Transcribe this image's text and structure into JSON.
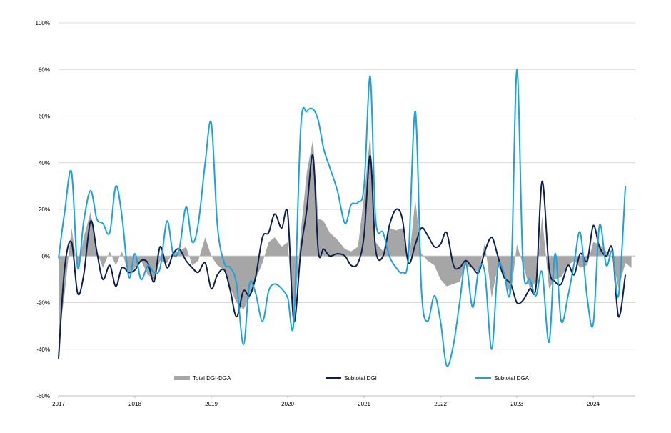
{
  "chart_data": {
    "type": "line",
    "x_unit": "year",
    "xlim": [
      2017,
      2024.55
    ],
    "ylim": [
      -60,
      100
    ],
    "y_ticks": [
      -60,
      -40,
      -20,
      0,
      20,
      40,
      60,
      80,
      100
    ],
    "y_tick_format": "{v}%",
    "x_ticks": [
      "2017",
      "2018",
      "2019",
      "2020",
      "2021",
      "2022",
      "2023",
      "2024"
    ],
    "grid": true,
    "legend_position": "bottom",
    "series": [
      {
        "name": "Total DGI-DGA",
        "type": "area",
        "color": "#a6a6a6",
        "points": [
          [
            2017,
            -36
          ],
          [
            2017.08,
            -16
          ],
          [
            2017.17,
            12
          ],
          [
            2017.25,
            -6
          ],
          [
            2017.33,
            8
          ],
          [
            2017.42,
            19
          ],
          [
            2017.5,
            2
          ],
          [
            2017.58,
            -5
          ],
          [
            2017.67,
            2
          ],
          [
            2017.75,
            -4
          ],
          [
            2017.83,
            2
          ],
          [
            2017.92,
            -8
          ],
          [
            2018,
            -5
          ],
          [
            2018.08,
            -2
          ],
          [
            2018.17,
            -8
          ],
          [
            2018.25,
            -10
          ],
          [
            2018.33,
            -2
          ],
          [
            2018.42,
            -3
          ],
          [
            2018.5,
            2
          ],
          [
            2018.58,
            2
          ],
          [
            2018.67,
            4
          ],
          [
            2018.75,
            -4
          ],
          [
            2018.83,
            -2
          ],
          [
            2018.92,
            8
          ],
          [
            2019,
            0
          ],
          [
            2019.08,
            -4
          ],
          [
            2019.17,
            -6
          ],
          [
            2019.25,
            -14
          ],
          [
            2019.33,
            -20
          ],
          [
            2019.42,
            -23
          ],
          [
            2019.5,
            -18
          ],
          [
            2019.58,
            -10
          ],
          [
            2019.67,
            -3
          ],
          [
            2019.75,
            6
          ],
          [
            2019.83,
            8
          ],
          [
            2019.92,
            4
          ],
          [
            2020,
            6
          ],
          [
            2020.08,
            -30
          ],
          [
            2020.17,
            10
          ],
          [
            2020.25,
            36
          ],
          [
            2020.33,
            50
          ],
          [
            2020.4,
            16
          ],
          [
            2020.47,
            15
          ],
          [
            2020.55,
            10
          ],
          [
            2020.65,
            7
          ],
          [
            2020.75,
            3
          ],
          [
            2020.83,
            2
          ],
          [
            2020.92,
            4
          ],
          [
            2021,
            26
          ],
          [
            2021.08,
            52
          ],
          [
            2021.15,
            6
          ],
          [
            2021.25,
            2
          ],
          [
            2021.33,
            12
          ],
          [
            2021.42,
            11
          ],
          [
            2021.5,
            12
          ],
          [
            2021.58,
            -4
          ],
          [
            2021.67,
            24
          ],
          [
            2021.75,
            1
          ],
          [
            2021.83,
            -2
          ],
          [
            2021.92,
            -4
          ],
          [
            2022,
            -10
          ],
          [
            2022.08,
            -13
          ],
          [
            2022.17,
            -12
          ],
          [
            2022.25,
            -11
          ],
          [
            2022.33,
            -4
          ],
          [
            2022.42,
            -5
          ],
          [
            2022.5,
            -7
          ],
          [
            2022.58,
            6
          ],
          [
            2022.67,
            -18
          ],
          [
            2022.75,
            -4
          ],
          [
            2022.83,
            -9
          ],
          [
            2022.92,
            -17
          ],
          [
            2023,
            5
          ],
          [
            2023.08,
            -4
          ],
          [
            2023.17,
            -14
          ],
          [
            2023.25,
            -11
          ],
          [
            2023.33,
            17
          ],
          [
            2023.42,
            -14
          ],
          [
            2023.5,
            -10
          ],
          [
            2023.58,
            -9
          ],
          [
            2023.67,
            -4
          ],
          [
            2023.75,
            -2
          ],
          [
            2023.83,
            -5
          ],
          [
            2023.92,
            -4
          ],
          [
            2024,
            6
          ],
          [
            2024.08,
            5
          ],
          [
            2024.17,
            2
          ],
          [
            2024.25,
            -1
          ],
          [
            2024.33,
            -14
          ],
          [
            2024.42,
            -3
          ],
          [
            2024.5,
            -5
          ]
        ]
      },
      {
        "name": "Subtotal DGI",
        "type": "line",
        "color": "#0d1f4f",
        "points": [
          [
            2017,
            -44
          ],
          [
            2017.08,
            -5
          ],
          [
            2017.17,
            6
          ],
          [
            2017.25,
            -16
          ],
          [
            2017.33,
            -8
          ],
          [
            2017.42,
            15
          ],
          [
            2017.5,
            2
          ],
          [
            2017.58,
            -10
          ],
          [
            2017.67,
            -4
          ],
          [
            2017.75,
            -13
          ],
          [
            2017.83,
            -5
          ],
          [
            2017.92,
            -7
          ],
          [
            2018,
            -6
          ],
          [
            2018.08,
            -2
          ],
          [
            2018.17,
            -3
          ],
          [
            2018.25,
            -11
          ],
          [
            2018.33,
            4
          ],
          [
            2018.42,
            -5
          ],
          [
            2018.5,
            1
          ],
          [
            2018.58,
            3
          ],
          [
            2018.67,
            -2
          ],
          [
            2018.75,
            -5
          ],
          [
            2018.83,
            -7
          ],
          [
            2018.92,
            -3
          ],
          [
            2019,
            -14
          ],
          [
            2019.08,
            -8
          ],
          [
            2019.17,
            -6
          ],
          [
            2019.25,
            -15
          ],
          [
            2019.33,
            -26
          ],
          [
            2019.42,
            -15
          ],
          [
            2019.5,
            -17
          ],
          [
            2019.58,
            -9
          ],
          [
            2019.67,
            8
          ],
          [
            2019.75,
            10
          ],
          [
            2019.83,
            18
          ],
          [
            2019.92,
            12
          ],
          [
            2020,
            18
          ],
          [
            2020.08,
            -28
          ],
          [
            2020.17,
            2
          ],
          [
            2020.25,
            20
          ],
          [
            2020.33,
            43
          ],
          [
            2020.4,
            2
          ],
          [
            2020.47,
            3
          ],
          [
            2020.55,
            0
          ],
          [
            2020.65,
            1
          ],
          [
            2020.75,
            0
          ],
          [
            2020.83,
            -4
          ],
          [
            2020.92,
            -3
          ],
          [
            2021,
            9
          ],
          [
            2021.08,
            43
          ],
          [
            2021.15,
            3
          ],
          [
            2021.25,
            0
          ],
          [
            2021.33,
            13
          ],
          [
            2021.42,
            20
          ],
          [
            2021.5,
            16
          ],
          [
            2021.58,
            -3
          ],
          [
            2021.67,
            5
          ],
          [
            2021.75,
            12
          ],
          [
            2021.83,
            9
          ],
          [
            2021.92,
            4
          ],
          [
            2022,
            5
          ],
          [
            2022.08,
            10
          ],
          [
            2022.17,
            -4
          ],
          [
            2022.25,
            -5
          ],
          [
            2022.33,
            -2
          ],
          [
            2022.42,
            -5
          ],
          [
            2022.5,
            -7
          ],
          [
            2022.58,
            2
          ],
          [
            2022.67,
            8
          ],
          [
            2022.75,
            0
          ],
          [
            2022.83,
            -9
          ],
          [
            2022.92,
            -12
          ],
          [
            2023,
            -20
          ],
          [
            2023.08,
            -19
          ],
          [
            2023.17,
            -14
          ],
          [
            2023.25,
            -13
          ],
          [
            2023.33,
            32
          ],
          [
            2023.42,
            -5
          ],
          [
            2023.5,
            -11
          ],
          [
            2023.58,
            -12
          ],
          [
            2023.67,
            -4
          ],
          [
            2023.75,
            -8
          ],
          [
            2023.83,
            1
          ],
          [
            2023.92,
            -2
          ],
          [
            2024,
            13
          ],
          [
            2024.08,
            4
          ],
          [
            2024.17,
            0
          ],
          [
            2024.25,
            3
          ],
          [
            2024.33,
            -26
          ],
          [
            2024.42,
            -8
          ]
        ]
      },
      {
        "name": "Subtotal DGA",
        "type": "line",
        "color": "#1ca3dd",
        "points": [
          [
            2017,
            -1
          ],
          [
            2017.08,
            19
          ],
          [
            2017.17,
            36
          ],
          [
            2017.25,
            -5
          ],
          [
            2017.33,
            15
          ],
          [
            2017.42,
            28
          ],
          [
            2017.5,
            16
          ],
          [
            2017.58,
            14
          ],
          [
            2017.67,
            10
          ],
          [
            2017.75,
            30
          ],
          [
            2017.83,
            17
          ],
          [
            2017.92,
            -9
          ],
          [
            2018,
            1
          ],
          [
            2018.08,
            -10
          ],
          [
            2018.17,
            -4
          ],
          [
            2018.25,
            -7
          ],
          [
            2018.33,
            -5
          ],
          [
            2018.42,
            15
          ],
          [
            2018.5,
            1
          ],
          [
            2018.58,
            3
          ],
          [
            2018.67,
            21
          ],
          [
            2018.75,
            6
          ],
          [
            2018.83,
            14
          ],
          [
            2018.92,
            40
          ],
          [
            2019,
            57
          ],
          [
            2019.08,
            13
          ],
          [
            2019.17,
            -3
          ],
          [
            2019.25,
            -5
          ],
          [
            2019.33,
            -12
          ],
          [
            2019.42,
            -38
          ],
          [
            2019.5,
            -12
          ],
          [
            2019.58,
            -16
          ],
          [
            2019.67,
            -28
          ],
          [
            2019.75,
            -15
          ],
          [
            2019.83,
            -12
          ],
          [
            2019.92,
            -14
          ],
          [
            2020,
            -18
          ],
          [
            2020.08,
            -28
          ],
          [
            2020.17,
            55
          ],
          [
            2020.25,
            62
          ],
          [
            2020.33,
            63
          ],
          [
            2020.4,
            58
          ],
          [
            2020.47,
            46
          ],
          [
            2020.55,
            38
          ],
          [
            2020.65,
            28
          ],
          [
            2020.75,
            14
          ],
          [
            2020.83,
            22
          ],
          [
            2020.92,
            23
          ],
          [
            2021,
            30
          ],
          [
            2021.08,
            77
          ],
          [
            2021.15,
            16
          ],
          [
            2021.25,
            10
          ],
          [
            2021.33,
            0
          ],
          [
            2021.42,
            -5
          ],
          [
            2021.5,
            -7
          ],
          [
            2021.58,
            0
          ],
          [
            2021.67,
            62
          ],
          [
            2021.75,
            -14
          ],
          [
            2021.83,
            -28
          ],
          [
            2021.92,
            -17
          ],
          [
            2022,
            -28
          ],
          [
            2022.08,
            -47
          ],
          [
            2022.17,
            -38
          ],
          [
            2022.25,
            -20
          ],
          [
            2022.33,
            -3
          ],
          [
            2022.42,
            -22
          ],
          [
            2022.5,
            -6
          ],
          [
            2022.58,
            -7
          ],
          [
            2022.67,
            -40
          ],
          [
            2022.75,
            -5
          ],
          [
            2022.83,
            -7
          ],
          [
            2022.92,
            -12
          ],
          [
            2023,
            80
          ],
          [
            2023.08,
            -4
          ],
          [
            2023.17,
            -10
          ],
          [
            2023.25,
            -17
          ],
          [
            2023.33,
            -7
          ],
          [
            2023.42,
            -37
          ],
          [
            2023.5,
            1
          ],
          [
            2023.58,
            -28
          ],
          [
            2023.67,
            -17
          ],
          [
            2023.75,
            -3
          ],
          [
            2023.83,
            10
          ],
          [
            2023.92,
            -18
          ],
          [
            2024,
            -29
          ],
          [
            2024.08,
            13
          ],
          [
            2024.17,
            -4
          ],
          [
            2024.25,
            2
          ],
          [
            2024.33,
            -17
          ],
          [
            2024.42,
            30
          ]
        ]
      }
    ]
  }
}
